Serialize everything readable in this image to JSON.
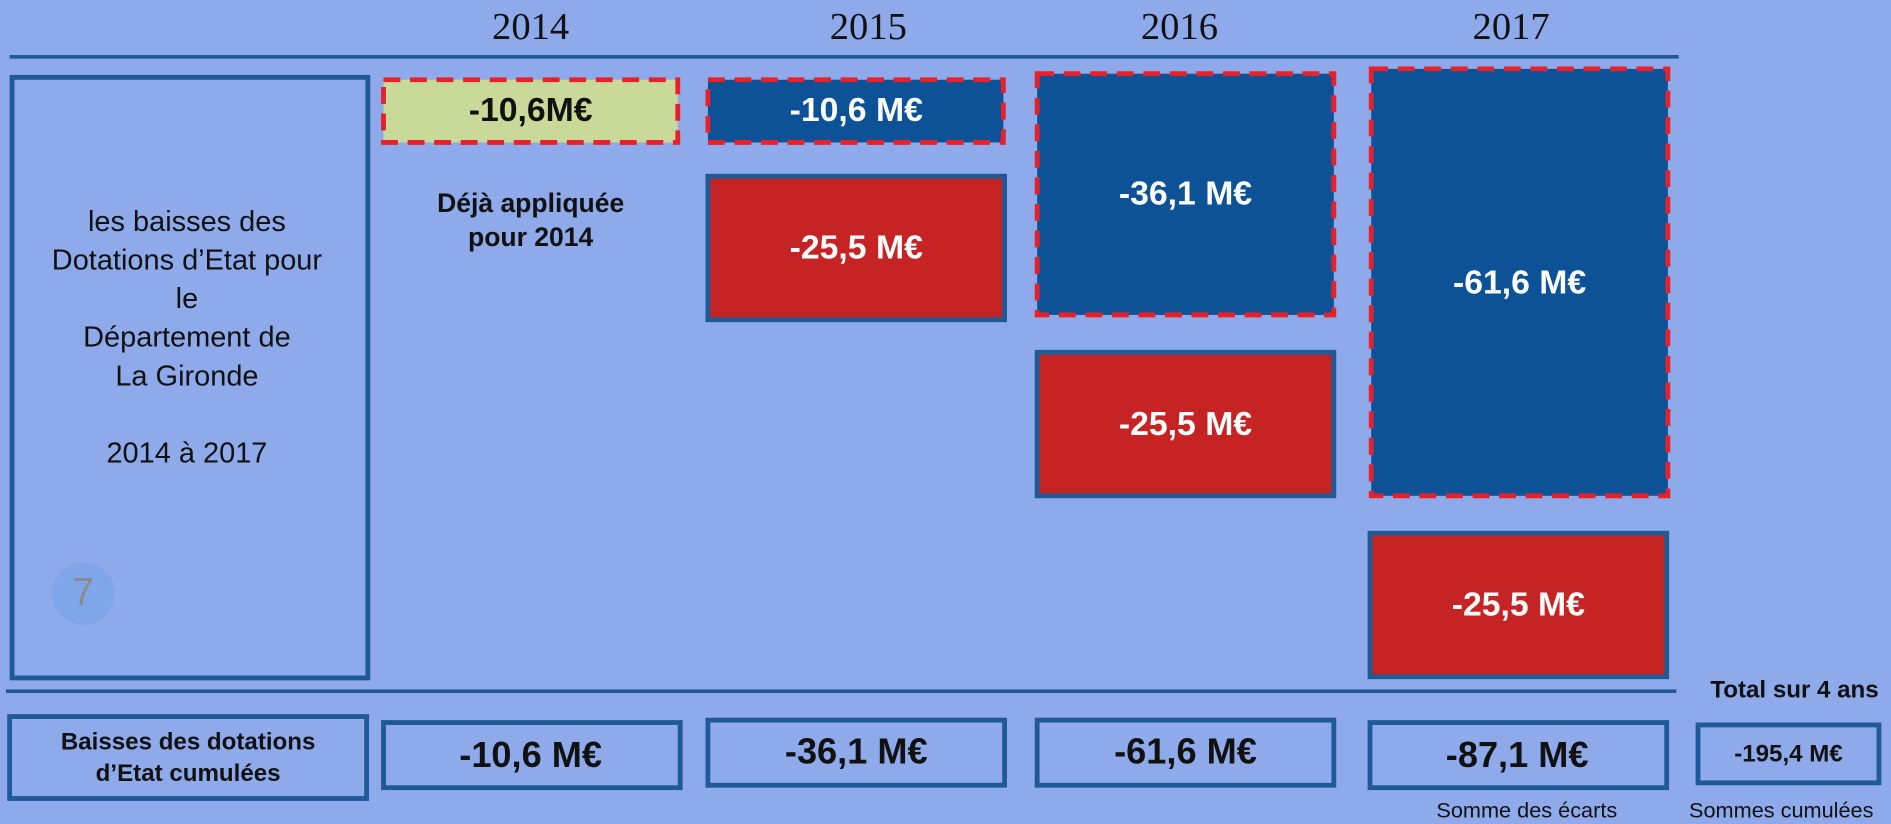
{
  "header": {
    "years": [
      "2014",
      "2015",
      "2016",
      "2017"
    ]
  },
  "sidebar": {
    "lines": [
      "les baisses des",
      "Dotations d’Etat pour",
      "le",
      "Département de",
      "La Gironde",
      "2014 à 2017"
    ],
    "page_number": "7"
  },
  "columns": [
    {
      "boxes": [
        "-10,6M€"
      ],
      "note": [
        "Déjà appliquée",
        "pour 2014"
      ]
    },
    {
      "boxes": [
        "-10,6 M€",
        "-25,5 M€"
      ]
    },
    {
      "boxes": [
        "-36,1 M€",
        "-25,5 M€"
      ]
    },
    {
      "boxes": [
        "-61,6 M€",
        "-25,5 M€"
      ]
    }
  ],
  "footer": {
    "label": [
      "Baisses des dotations",
      "d’Etat cumulées"
    ],
    "cumulated": [
      "-10,6 M€",
      "-36,1 M€",
      "-61,6 M€",
      "-87,1 M€"
    ],
    "total_title": "Total sur 4 ans",
    "total": "-195,4 M€",
    "note_2017": "Somme des écarts",
    "note_total": "Sommes cumulées"
  }
}
